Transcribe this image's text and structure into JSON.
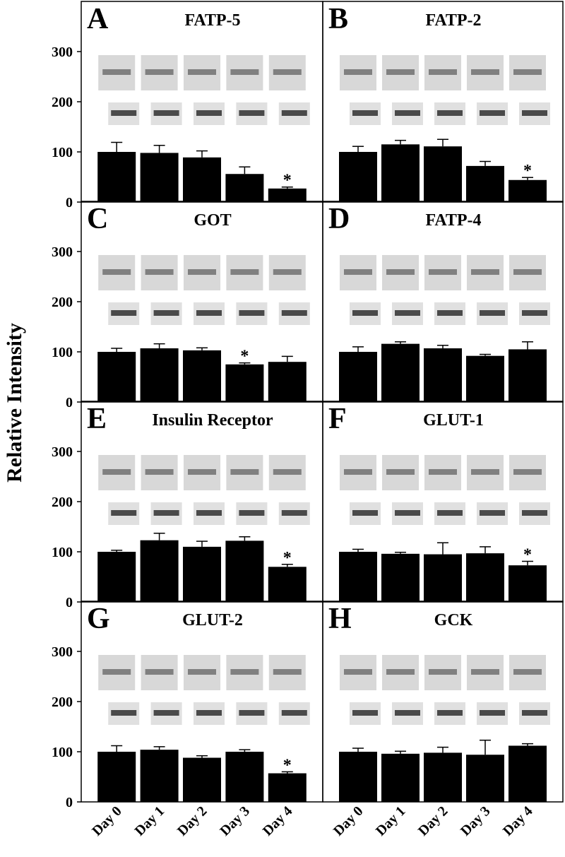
{
  "ylabel": "Relative Intensity",
  "chart_data": [
    {
      "type": "bar",
      "label": "A",
      "title": "FATP-5",
      "values": [
        100,
        98,
        89,
        56,
        27
      ],
      "errors": [
        19,
        15,
        13,
        14,
        3
      ],
      "annotations": [
        {
          "x": 4,
          "text": "*"
        }
      ],
      "color": "#000000",
      "ylim": [
        0,
        400
      ],
      "yticks": [
        0,
        100,
        200,
        300
      ]
    },
    {
      "type": "bar",
      "label": "B",
      "title": "FATP-2",
      "values": [
        100,
        115,
        111,
        72,
        44
      ],
      "errors": [
        11,
        8,
        14,
        9,
        5
      ],
      "annotations": [
        {
          "x": 4,
          "text": "*"
        }
      ],
      "color": "#000000",
      "ylim": [
        0,
        400
      ]
    },
    {
      "type": "bar",
      "label": "C",
      "title": "GOT",
      "values": [
        100,
        107,
        103,
        75,
        80
      ],
      "errors": [
        7,
        9,
        5,
        3,
        11
      ],
      "annotations": [
        {
          "x": 3,
          "text": "*"
        }
      ],
      "color": "#000000",
      "ylim": [
        0,
        400
      ],
      "yticks": [
        0,
        100,
        200,
        300
      ]
    },
    {
      "type": "bar",
      "label": "D",
      "title": "FATP-4",
      "values": [
        100,
        116,
        107,
        92,
        105
      ],
      "errors": [
        10,
        4,
        6,
        3,
        15
      ],
      "color": "#000000",
      "ylim": [
        0,
        400
      ]
    },
    {
      "type": "bar",
      "label": "E",
      "title": "Insulin Receptor",
      "values": [
        100,
        123,
        110,
        122,
        70
      ],
      "errors": [
        3,
        14,
        11,
        8,
        5
      ],
      "annotations": [
        {
          "x": 4,
          "text": "*"
        }
      ],
      "color": "#000000",
      "ylim": [
        0,
        400
      ],
      "yticks": [
        0,
        100,
        200,
        300
      ]
    },
    {
      "type": "bar",
      "label": "F",
      "title": "GLUT-1",
      "values": [
        100,
        96,
        95,
        97,
        73
      ],
      "errors": [
        5,
        3,
        23,
        13,
        8
      ],
      "annotations": [
        {
          "x": 4,
          "text": "*"
        }
      ],
      "color": "#000000",
      "ylim": [
        0,
        400
      ]
    },
    {
      "type": "bar",
      "label": "G",
      "title": "GLUT-2",
      "categories": [
        "Day 0",
        "Day 1",
        "Day 2",
        "Day 3",
        "Day 4"
      ],
      "values": [
        100,
        104,
        88,
        100,
        57
      ],
      "errors": [
        12,
        6,
        4,
        4,
        3
      ],
      "annotations": [
        {
          "x": 4,
          "text": "*"
        }
      ],
      "color": "#000000",
      "ylim": [
        0,
        400
      ],
      "yticks": [
        0,
        100,
        200,
        300
      ]
    },
    {
      "type": "bar",
      "label": "H",
      "title": "GCK",
      "categories": [
        "Day 0",
        "Day 1",
        "Day 2",
        "Day 3",
        "Day 4"
      ],
      "values": [
        100,
        96,
        98,
        94,
        112
      ],
      "errors": [
        7,
        5,
        11,
        29,
        4
      ],
      "color": "#000000",
      "ylim": [
        0,
        400
      ]
    }
  ]
}
